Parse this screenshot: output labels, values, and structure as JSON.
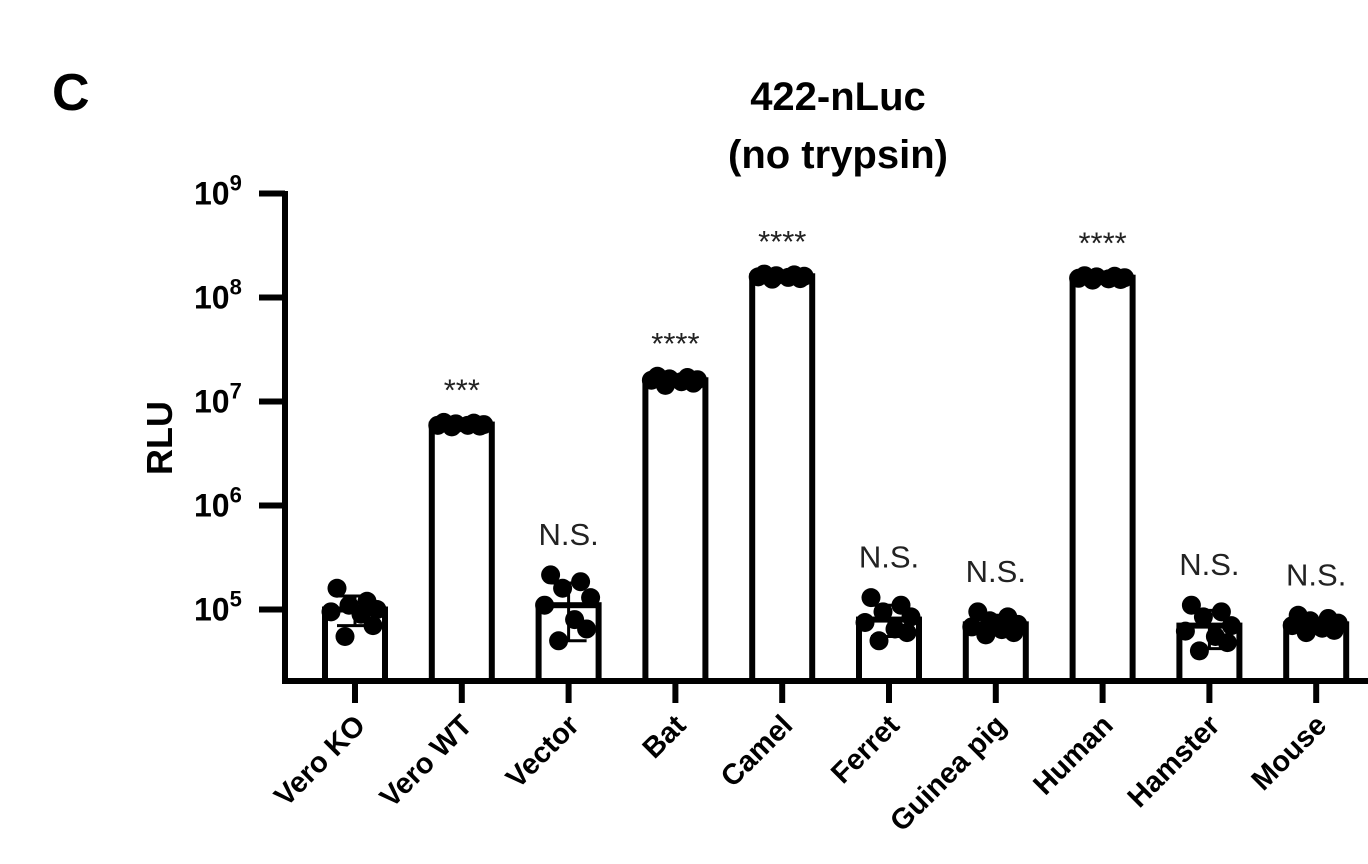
{
  "panel_letter": "C",
  "chart_data": {
    "type": "bar",
    "title_lines": [
      "422-nLuc",
      "(no trypsin)"
    ],
    "xlabel": "",
    "ylabel": "RLU",
    "yscale": "log",
    "ylim": [
      20000,
      1000000000
    ],
    "yticks": [
      {
        "base": "10",
        "exp": "5",
        "value": 100000
      },
      {
        "base": "10",
        "exp": "6",
        "value": 1000000
      },
      {
        "base": "10",
        "exp": "7",
        "value": 10000000
      },
      {
        "base": "10",
        "exp": "8",
        "value": 100000000
      },
      {
        "base": "10",
        "exp": "9",
        "value": 1000000000
      }
    ],
    "categories": [
      "Vero KO",
      "Vero WT",
      "Vector",
      "Bat",
      "Camel",
      "Ferret",
      "Guinea pig",
      "Human",
      "Hamster",
      "Mouse"
    ],
    "values": [
      100000,
      6000000,
      110000,
      16000000,
      160000000,
      80000,
      72000,
      155000000,
      70000,
      72000
    ],
    "error": [
      [
        70000,
        135000
      ],
      [
        5700000,
        6300000
      ],
      [
        50000,
        180000
      ],
      [
        14500000,
        17500000
      ],
      [
        150000000,
        168000000
      ],
      [
        55000,
        110000
      ],
      [
        60000,
        88000
      ],
      [
        147000000,
        163000000
      ],
      [
        42000,
        98000
      ],
      [
        63000,
        81000
      ]
    ],
    "points": [
      [
        160000,
        120000,
        110000,
        100000,
        95000,
        90000,
        70000,
        55000
      ],
      [
        6300000,
        6200000,
        6100000,
        6000000,
        5900000,
        5900000,
        5800000,
        5700000
      ],
      [
        215000,
        185000,
        160000,
        130000,
        110000,
        80000,
        65000,
        50000
      ],
      [
        17500000,
        17000000,
        16500000,
        16200000,
        16000000,
        15500000,
        15000000,
        14300000
      ],
      [
        168000000,
        165000000,
        162000000,
        160000000,
        158000000,
        156000000,
        152000000,
        150000000
      ],
      [
        130000,
        110000,
        95000,
        85000,
        75000,
        65000,
        60000,
        50000
      ],
      [
        95000,
        85000,
        78000,
        72000,
        68000,
        64000,
        60000,
        57000
      ],
      [
        162000000,
        160000000,
        158000000,
        155000000,
        153000000,
        151000000,
        149000000,
        147000000
      ],
      [
        110000,
        95000,
        85000,
        70000,
        62000,
        55000,
        48000,
        40000
      ],
      [
        88000,
        82000,
        78000,
        74000,
        70000,
        66000,
        63000,
        60000
      ]
    ],
    "significance": [
      "",
      "***",
      "N.S.",
      "****",
      "****",
      "N.S.",
      "N.S.",
      "****",
      "N.S.",
      "N.S."
    ],
    "grid": false,
    "legend": "none",
    "colors": {
      "bar_fill": "#ffffff",
      "bar_stroke": "#000000",
      "point": "#000000",
      "axis": "#000000"
    }
  }
}
